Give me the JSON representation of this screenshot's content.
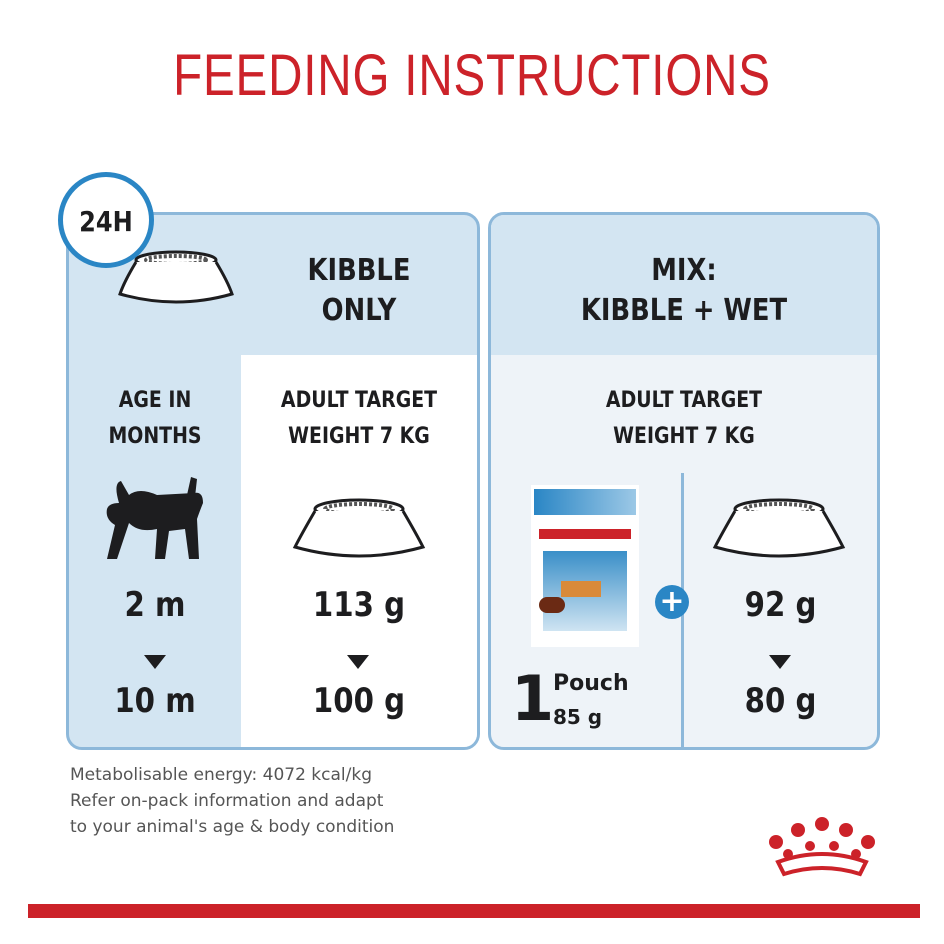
{
  "title": "FEEDING INSTRUCTIONS",
  "clock_label": "24H",
  "kibble_only": {
    "header": [
      "KIBBLE",
      "ONLY"
    ],
    "age_label": [
      "AGE IN",
      "MONTHS"
    ],
    "target_label": [
      "ADULT TARGET",
      "WEIGHT 7 KG"
    ],
    "age_from": "2 m",
    "age_to": "10 m",
    "amount_from": "113 g",
    "amount_to": "100 g"
  },
  "mix": {
    "header": [
      "MIX:",
      "KIBBLE + WET"
    ],
    "target_label": [
      "ADULT TARGET",
      "WEIGHT 7 KG"
    ],
    "pouch_count": "1",
    "pouch_label": "Pouch",
    "pouch_weight": "85 g",
    "amount_from": "92 g",
    "amount_to": "80 g"
  },
  "notes": [
    "Metabolisable energy: 4072 kcal/kg",
    "Refer on-pack information and adapt",
    "to your animal's age & body condition"
  ],
  "colors": {
    "brand_red": "#cc2229",
    "accent_blue": "#2a86c5",
    "panel_blue": "#d3e5f2"
  }
}
